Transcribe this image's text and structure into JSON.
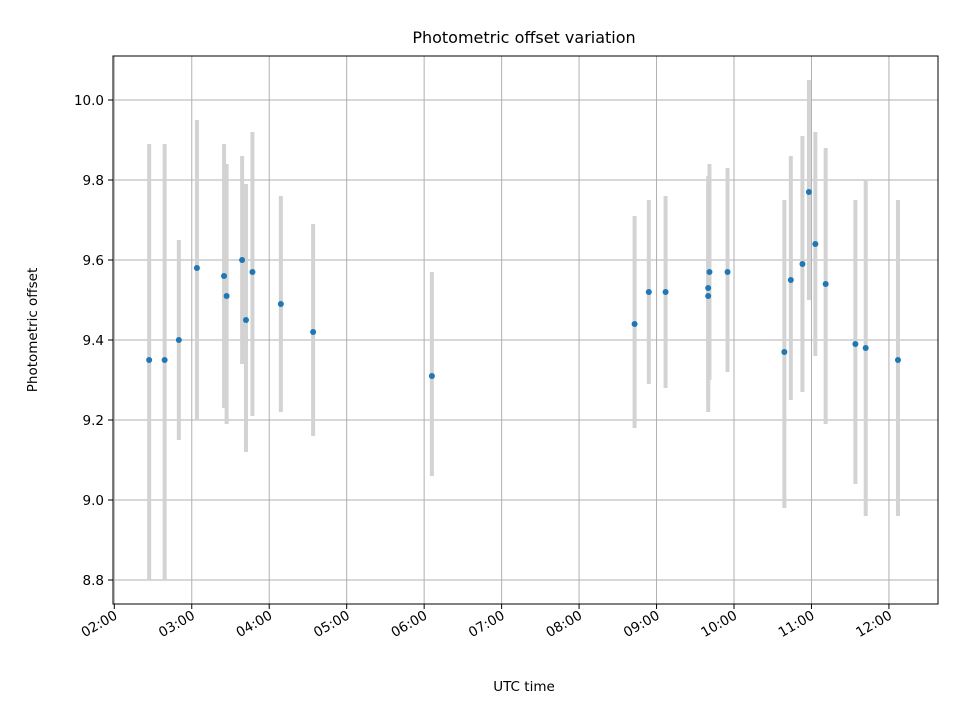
{
  "chart_data": {
    "type": "scatter",
    "title": "Photometric offset variation",
    "xlabel": "UTC time",
    "ylabel": "Photometric offset",
    "xlim": [
      "01:59",
      "12:38"
    ],
    "ylim": [
      8.74,
      10.11
    ],
    "x_ticks": [
      "02:00",
      "03:00",
      "04:00",
      "05:00",
      "06:00",
      "07:00",
      "08:00",
      "09:00",
      "10:00",
      "11:00",
      "12:00"
    ],
    "y_ticks": [
      8.8,
      9.0,
      9.2,
      9.4,
      9.6,
      9.8,
      10.0
    ],
    "grid": true,
    "point_color": "#1f77b4",
    "errorbar_color": "#d3d3d3",
    "points": [
      {
        "t": "02:27",
        "y": 9.35,
        "lo": 8.8,
        "hi": 9.89
      },
      {
        "t": "02:39",
        "y": 9.35,
        "lo": 8.8,
        "hi": 9.89
      },
      {
        "t": "02:50",
        "y": 9.4,
        "lo": 9.15,
        "hi": 9.65
      },
      {
        "t": "03:04",
        "y": 9.58,
        "lo": 9.2,
        "hi": 9.95
      },
      {
        "t": "03:25",
        "y": 9.56,
        "lo": 9.23,
        "hi": 9.89
      },
      {
        "t": "03:27",
        "y": 9.51,
        "lo": 9.19,
        "hi": 9.84
      },
      {
        "t": "03:39",
        "y": 9.6,
        "lo": 9.34,
        "hi": 9.86
      },
      {
        "t": "03:42",
        "y": 9.45,
        "lo": 9.12,
        "hi": 9.79
      },
      {
        "t": "03:47",
        "y": 9.57,
        "lo": 9.21,
        "hi": 9.92
      },
      {
        "t": "04:09",
        "y": 9.49,
        "lo": 9.22,
        "hi": 9.76
      },
      {
        "t": "04:34",
        "y": 9.42,
        "lo": 9.16,
        "hi": 9.69
      },
      {
        "t": "06:06",
        "y": 9.31,
        "lo": 9.06,
        "hi": 9.57
      },
      {
        "t": "08:43",
        "y": 9.44,
        "lo": 9.18,
        "hi": 9.71
      },
      {
        "t": "08:54",
        "y": 9.52,
        "lo": 9.29,
        "hi": 9.75
      },
      {
        "t": "09:07",
        "y": 9.52,
        "lo": 9.28,
        "hi": 9.76
      },
      {
        "t": "09:40",
        "y": 9.51,
        "lo": 9.22,
        "hi": 9.79
      },
      {
        "t": "09:40",
        "y": 9.53,
        "lo": 9.25,
        "hi": 9.81
      },
      {
        "t": "09:41",
        "y": 9.57,
        "lo": 9.3,
        "hi": 9.84
      },
      {
        "t": "09:55",
        "y": 9.57,
        "lo": 9.32,
        "hi": 9.83
      },
      {
        "t": "10:39",
        "y": 9.37,
        "lo": 8.98,
        "hi": 9.75
      },
      {
        "t": "10:44",
        "y": 9.55,
        "lo": 9.25,
        "hi": 9.86
      },
      {
        "t": "10:53",
        "y": 9.59,
        "lo": 9.27,
        "hi": 9.91
      },
      {
        "t": "10:58",
        "y": 9.77,
        "lo": 9.5,
        "hi": 10.05
      },
      {
        "t": "11:03",
        "y": 9.64,
        "lo": 9.36,
        "hi": 9.92
      },
      {
        "t": "11:11",
        "y": 9.54,
        "lo": 9.19,
        "hi": 9.88
      },
      {
        "t": "11:34",
        "y": 9.39,
        "lo": 9.04,
        "hi": 9.75
      },
      {
        "t": "11:42",
        "y": 9.38,
        "lo": 8.96,
        "hi": 9.8
      },
      {
        "t": "12:07",
        "y": 9.35,
        "lo": 8.96,
        "hi": 9.75
      }
    ]
  }
}
